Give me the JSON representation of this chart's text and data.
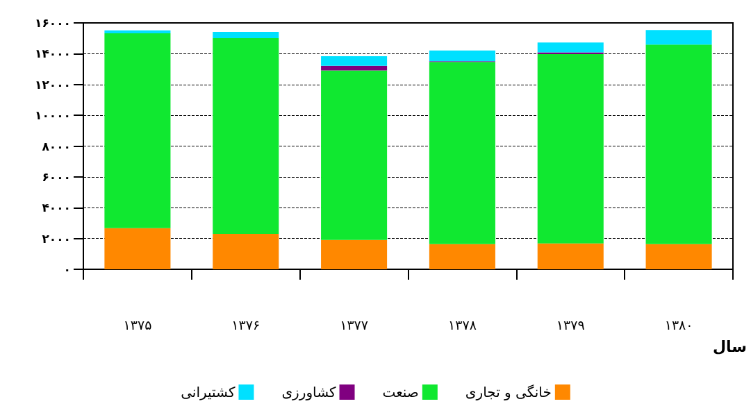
{
  "chart_data": {
    "type": "bar",
    "stacked": true,
    "categories": [
      "۱۳۷۵",
      "۱۳۷۶",
      "۱۳۷۷",
      "۱۳۷۸",
      "۱۳۷۹",
      "۱۳۸۰"
    ],
    "xlabel": "سال",
    "series": [
      {
        "name": "خانگی و تجاری",
        "color": "#ff8800",
        "values": [
          2670,
          2300,
          1900,
          1630,
          1680,
          1630
        ]
      },
      {
        "name": "صنعت",
        "color": "#10e830",
        "values": [
          12650,
          12710,
          11010,
          11830,
          12290,
          12960
        ]
      },
      {
        "name": "کشاورزی",
        "color": "#800080",
        "values": [
          0,
          0,
          310,
          50,
          110,
          0
        ]
      },
      {
        "name": "کشتیرانی",
        "color": "#00e0ff",
        "values": [
          190,
          400,
          620,
          700,
          650,
          950
        ]
      }
    ],
    "ylim": [
      0,
      16000
    ],
    "yticks": [
      {
        "value": 0,
        "label": "۰"
      },
      {
        "value": 2000,
        "label": "۲۰۰۰"
      },
      {
        "value": 4000,
        "label": "۴۰۰۰"
      },
      {
        "value": 6000,
        "label": "۶۰۰۰"
      },
      {
        "value": 8000,
        "label": "۸۰۰۰"
      },
      {
        "value": 10000,
        "label": "۱۰۰۰۰"
      },
      {
        "value": 12000,
        "label": "۱۲۰۰۰"
      },
      {
        "value": 14000,
        "label": "۱۴۰۰۰"
      },
      {
        "value": 16000,
        "label": "۱۶۰۰۰"
      }
    ],
    "grid": "y",
    "legend": "bottom"
  }
}
